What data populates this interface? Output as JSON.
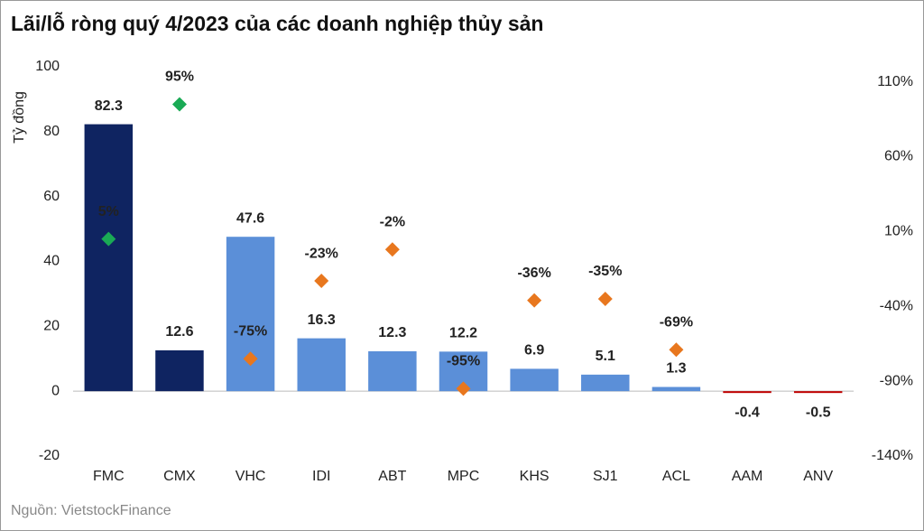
{
  "chart_data": {
    "type": "bar",
    "title": "Lãi/lỗ ròng quý 4/2023 của các doanh nghiệp thủy sản",
    "y_label": "Tỷ đồng",
    "source": "Nguồn:  VietstockFinance",
    "categories": [
      "FMC",
      "CMX",
      "VHC",
      "IDI",
      "ABT",
      "MPC",
      "KHS",
      "SJ1",
      "ACL",
      "AAM",
      "ANV"
    ],
    "series": [
      {
        "type": "bar",
        "values": [
          82.3,
          12.6,
          47.6,
          16.3,
          12.3,
          12.2,
          6.9,
          5.1,
          1.3,
          -0.4,
          -0.5
        ],
        "colors": [
          "#0f2461",
          "#0f2461",
          "#5b8fd8",
          "#5b8fd8",
          "#5b8fd8",
          "#5b8fd8",
          "#5b8fd8",
          "#5b8fd8",
          "#5b8fd8",
          "#c00000",
          "#c00000"
        ]
      },
      {
        "type": "scatter",
        "axis": "y2",
        "marker": "diamond",
        "values": [
          5,
          95,
          -75,
          -23,
          -2,
          -95,
          -36,
          -35,
          -69,
          null,
          null
        ],
        "value_labels": [
          "5%",
          "95%",
          "-75%",
          "-23%",
          "-2%",
          "-95%",
          "-36%",
          "-35%",
          "-69%",
          null,
          null
        ],
        "colors": [
          "#1aaa55",
          "#1aaa55",
          "#e8771e",
          "#e8771e",
          "#e8771e",
          "#e8771e",
          "#e8771e",
          "#e8771e",
          "#e8771e",
          null,
          null
        ]
      }
    ],
    "ylim": [
      -20,
      100
    ],
    "yticks": [
      -20,
      0,
      20,
      40,
      60,
      80,
      100
    ],
    "y2lim": [
      -140,
      120
    ],
    "y2ticks": [
      {
        "value": -140,
        "label": "-140%"
      },
      {
        "value": -90,
        "label": "-90%"
      },
      {
        "value": -40,
        "label": "-40%"
      },
      {
        "value": 10,
        "label": "10%"
      },
      {
        "value": 60,
        "label": "60%"
      },
      {
        "value": 110,
        "label": "110%"
      }
    ]
  }
}
